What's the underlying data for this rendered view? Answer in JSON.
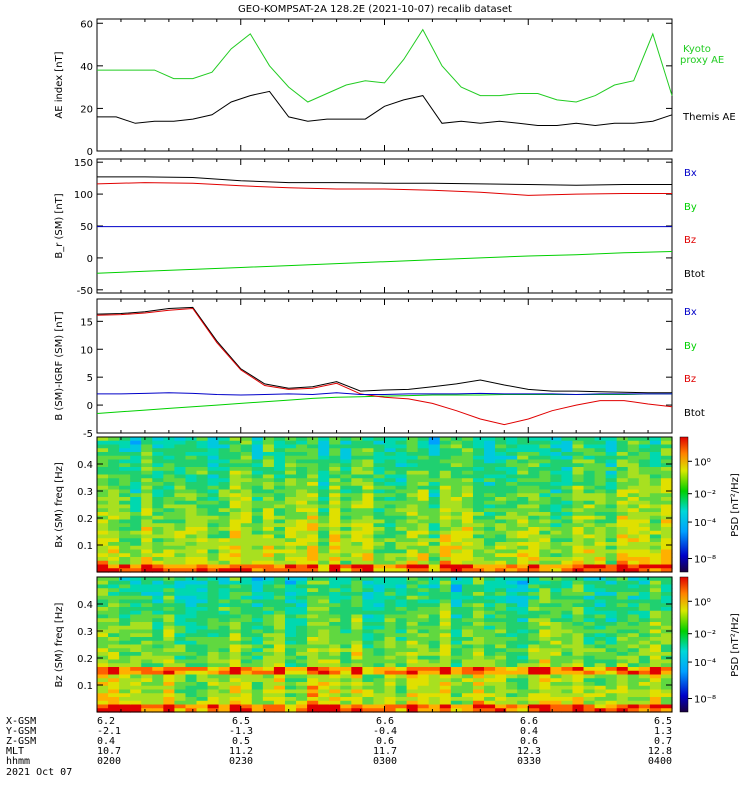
{
  "title": "GEO-KOMPSAT-2A 128.2E (2021-10-07) recalib dataset",
  "colors": {
    "black": "#000000",
    "red": "#e00000",
    "green": "#00d000",
    "blue": "#0000c8",
    "kyoto": "#22cc22"
  },
  "chart_data": [
    {
      "type": "line",
      "ylabel": "AE index [nT]",
      "ylim": [
        0,
        62
      ],
      "yticks": [
        0,
        20,
        40,
        60
      ],
      "x": [
        0,
        4,
        8,
        12,
        16,
        20,
        24,
        28,
        32,
        36,
        40,
        44,
        48,
        52,
        56,
        60,
        64,
        68,
        72,
        76,
        80,
        84,
        88,
        92,
        96,
        100,
        104,
        108,
        112,
        116,
        120
      ],
      "series": [
        {
          "name": "Kyoto proxy AE",
          "color": "#22cc22",
          "values": [
            38,
            38,
            38,
            38,
            34,
            34,
            37,
            48,
            55,
            40,
            30,
            23,
            27,
            31,
            33,
            32,
            43,
            57,
            40,
            30,
            26,
            26,
            27,
            27,
            24,
            23,
            26,
            31,
            33,
            55,
            26
          ]
        },
        {
          "name": "Themis AE",
          "color": "#000000",
          "values": [
            16,
            16,
            13,
            14,
            14,
            15,
            17,
            23,
            26,
            28,
            16,
            14,
            15,
            15,
            15,
            21,
            24,
            26,
            13,
            14,
            13,
            14,
            13,
            12,
            12,
            13,
            12,
            13,
            13,
            14,
            17
          ]
        }
      ]
    },
    {
      "type": "line",
      "ylabel": "B_r (SM) [nT]",
      "ylim": [
        -55,
        155
      ],
      "yticks": [
        -50,
        0,
        50,
        100,
        150
      ],
      "x": [
        0,
        10,
        20,
        30,
        40,
        50,
        60,
        70,
        80,
        90,
        100,
        110,
        120
      ],
      "series": [
        {
          "name": "Bx",
          "color": "#000000",
          "values": [
            127,
            127,
            126,
            121,
            118,
            118,
            117,
            117,
            116,
            115,
            114,
            115,
            115
          ]
        },
        {
          "name": "By",
          "color": "#00d000",
          "values": [
            -24,
            -21,
            -18,
            -15,
            -12,
            -9,
            -6,
            -3,
            0,
            3,
            5,
            8,
            10
          ]
        },
        {
          "name": "Bz",
          "color": "#e00000",
          "values": [
            116,
            118,
            117,
            113,
            110,
            108,
            108,
            106,
            103,
            98,
            100,
            101,
            101
          ]
        },
        {
          "name": "Btot",
          "color": "#0000c8",
          "values": [
            49,
            49,
            49,
            49,
            49,
            49,
            49,
            49,
            49,
            49,
            49,
            49,
            49
          ]
        }
      ]
    },
    {
      "type": "line",
      "ylabel": "B (SM)-IGRF (SM) [nT]",
      "ylim": [
        -5,
        19
      ],
      "yticks": [
        -5,
        0,
        5,
        10,
        15
      ],
      "x": [
        0,
        5,
        10,
        15,
        20,
        25,
        30,
        35,
        40,
        45,
        50,
        55,
        60,
        65,
        70,
        75,
        80,
        85,
        90,
        95,
        100,
        105,
        110,
        115,
        120
      ],
      "series": [
        {
          "name": "Bx",
          "color": "#000000",
          "values": [
            16.3,
            16.4,
            16.7,
            17.3,
            17.5,
            11.5,
            6.5,
            3.8,
            3.0,
            3.3,
            4.2,
            2.5,
            2.7,
            2.8,
            3.3,
            3.8,
            4.5,
            3.6,
            2.8,
            2.5,
            2.5,
            2.4,
            2.3,
            2.2,
            2.2
          ]
        },
        {
          "name": "By",
          "color": "#00d000",
          "values": [
            -1.5,
            -1.2,
            -0.9,
            -0.6,
            -0.3,
            0.0,
            0.3,
            0.6,
            0.9,
            1.2,
            1.4,
            1.5,
            1.6,
            1.7,
            1.8,
            1.8,
            1.8,
            1.9,
            1.9,
            1.9,
            1.9,
            1.9,
            1.9,
            2.0,
            2.0
          ]
        },
        {
          "name": "Bz",
          "color": "#e00000",
          "values": [
            16.1,
            16.2,
            16.5,
            17.0,
            17.3,
            11.2,
            6.3,
            3.5,
            2.8,
            3.0,
            3.9,
            2.0,
            1.4,
            1.1,
            0.3,
            -1.0,
            -2.5,
            -3.5,
            -2.5,
            -1.0,
            0.0,
            0.8,
            0.8,
            0.2,
            -0.3
          ]
        },
        {
          "name": "Btot",
          "color": "#0000c8",
          "values": [
            2.0,
            2.0,
            2.1,
            2.2,
            2.1,
            1.9,
            1.8,
            1.9,
            2.0,
            1.9,
            2.2,
            1.9,
            1.9,
            2.0,
            2.0,
            2.0,
            2.1,
            2.0,
            2.0,
            2.0,
            1.9,
            2.0,
            2.0,
            2.0,
            2.0
          ]
        }
      ]
    },
    {
      "type": "heatmap",
      "ylabel": "Bx (SM) freq [Hz]",
      "ylim": [
        0,
        0.5
      ],
      "yticks": [
        0.1,
        0.2,
        0.3,
        0.4
      ],
      "colorbar": {
        "label": "PSD [nT²/Hz]",
        "ticks": [
          "10⁰",
          "10⁻²",
          "10⁻⁴",
          "10⁻⁸"
        ]
      }
    },
    {
      "type": "heatmap",
      "ylabel": "Bz (SM) freq [Hz]",
      "ylim": [
        0,
        0.5
      ],
      "yticks": [
        0.1,
        0.2,
        0.3,
        0.4
      ],
      "colorbar": {
        "label": "PSD [nT²/Hz]",
        "ticks": [
          "10⁰",
          "10⁻²",
          "10⁻⁴",
          "10⁻⁸"
        ]
      }
    }
  ],
  "panel1": {
    "legend": [
      "Kyoto",
      "proxy AE",
      "Themis AE"
    ]
  },
  "panel2": {
    "legend": [
      "Bx",
      "By",
      "Bz",
      "Btot"
    ]
  },
  "panel3": {
    "legend": [
      "Bx",
      "By",
      "Bz",
      "Btot"
    ]
  },
  "ephemeris": {
    "labels": [
      "X-GSM",
      "Y-GSM",
      "Z-GSM",
      "MLT",
      "hhmm",
      "2021 Oct 07"
    ],
    "columns": [
      [
        "6.2",
        "-2.1",
        "0.4",
        "10.7",
        "0200"
      ],
      [
        "6.5",
        "-1.3",
        "0.5",
        "11.2",
        "0230"
      ],
      [
        "6.6",
        "-0.4",
        "0.6",
        "11.7",
        "0300"
      ],
      [
        "6.6",
        "0.4",
        "0.6",
        "12.3",
        "0330"
      ],
      [
        "6.5",
        "1.3",
        "0.7",
        "12.8",
        "0400"
      ]
    ]
  }
}
